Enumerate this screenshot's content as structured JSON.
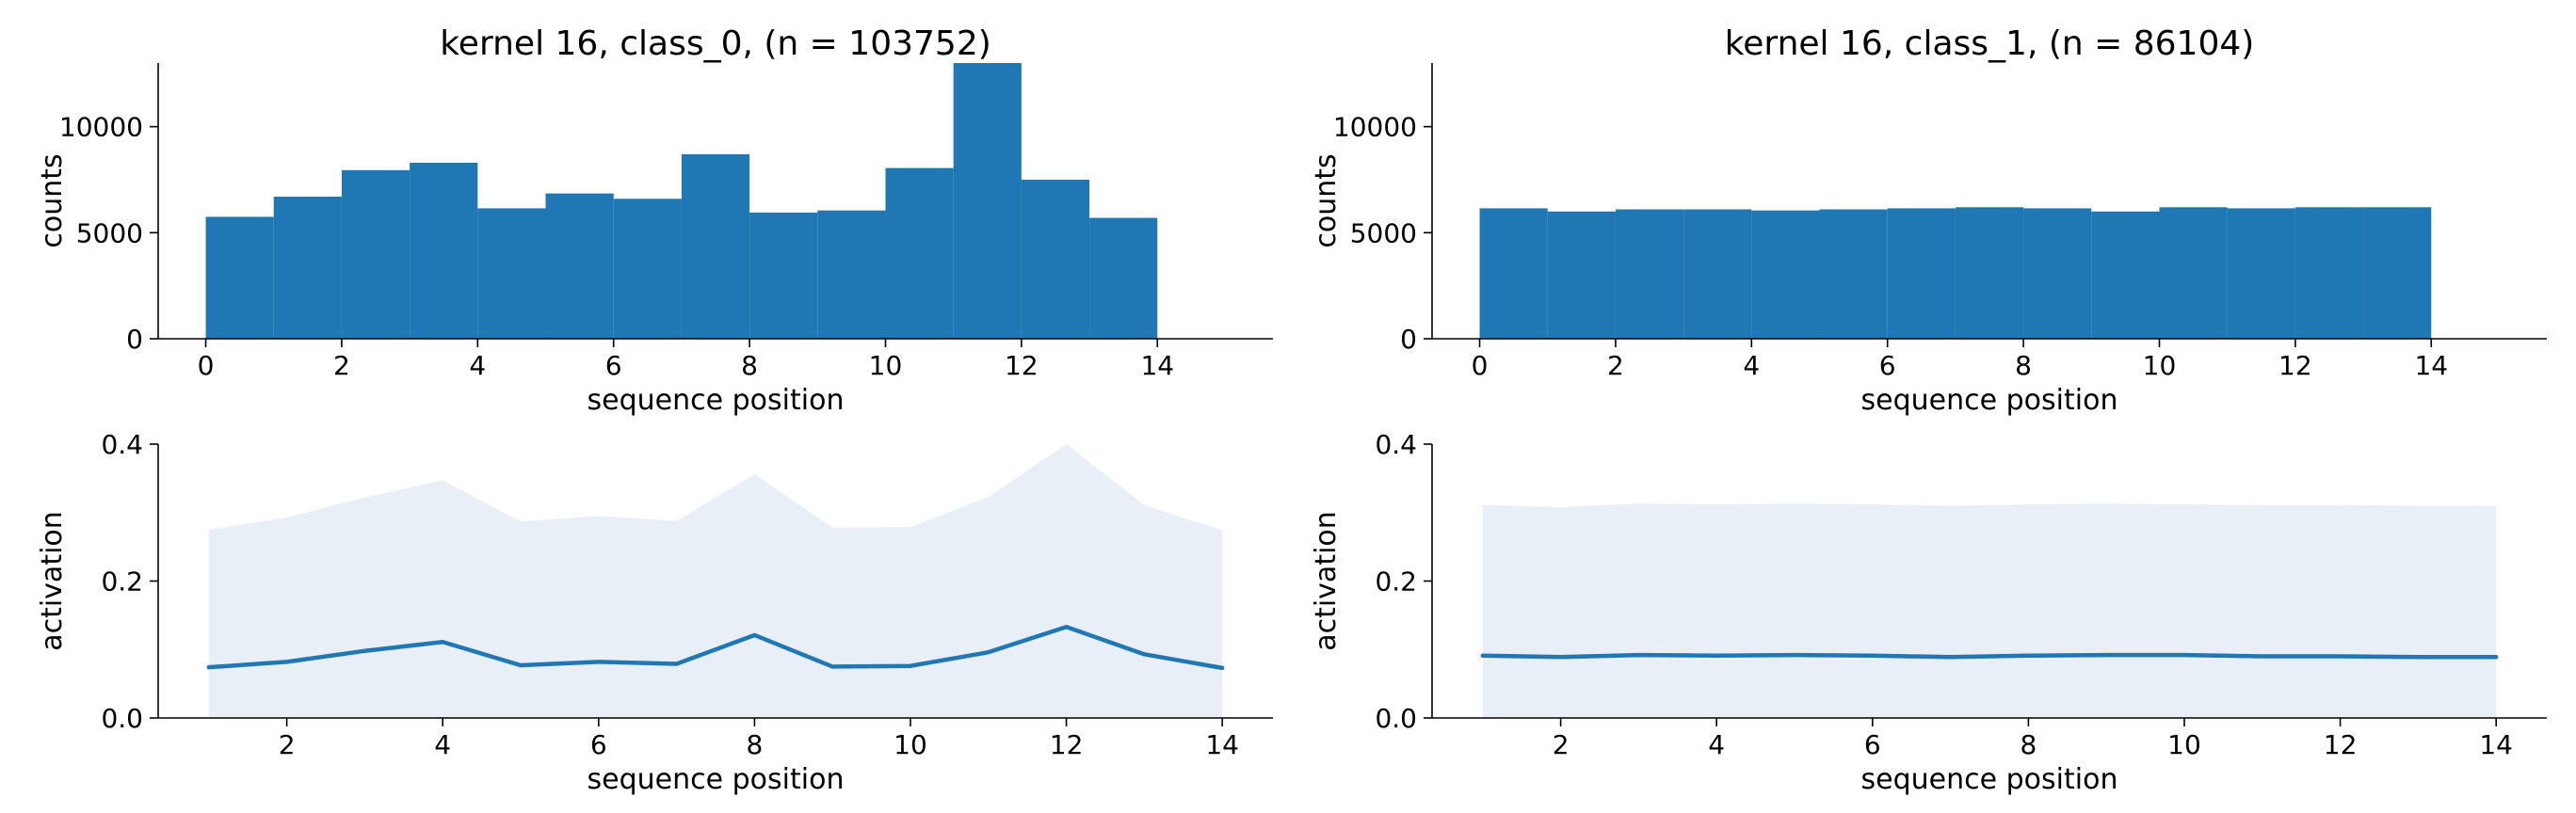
{
  "colors": {
    "bar": "#1f77b4",
    "line": "#1f77b4",
    "band": "#e8eff7",
    "axis": "#000000"
  },
  "chart_data": [
    {
      "type": "bar",
      "title": "kernel 16, class_0, (n = 103752)",
      "xlabel": "sequence position",
      "ylabel": "counts",
      "xlim": [
        -0.7,
        15.7
      ],
      "ylim": [
        0,
        13000
      ],
      "xticks": [
        0,
        2,
        4,
        6,
        8,
        10,
        12,
        14
      ],
      "yticks": [
        0,
        5000,
        10000
      ],
      "bin_edges": [
        0,
        1,
        2,
        3,
        4,
        5,
        6,
        7,
        8,
        9,
        10,
        11,
        12,
        13,
        14
      ],
      "values": [
        5750,
        6700,
        7950,
        8300,
        6150,
        6850,
        6600,
        8700,
        5950,
        6050,
        8050,
        13000,
        7500,
        5700
      ]
    },
    {
      "type": "bar",
      "title": "kernel 16, class_1, (n = 86104)",
      "xlabel": "sequence position",
      "ylabel": "counts",
      "xlim": [
        -0.7,
        15.7
      ],
      "ylim": [
        0,
        13000
      ],
      "xticks": [
        0,
        2,
        4,
        6,
        8,
        10,
        12,
        14
      ],
      "yticks": [
        0,
        5000,
        10000
      ],
      "bin_edges": [
        0,
        1,
        2,
        3,
        4,
        5,
        6,
        7,
        8,
        9,
        10,
        11,
        12,
        13,
        14
      ],
      "values": [
        6150,
        6000,
        6100,
        6100,
        6050,
        6100,
        6150,
        6200,
        6150,
        6000,
        6200,
        6150,
        6200,
        6200
      ]
    },
    {
      "type": "area",
      "title": "",
      "xlabel": "sequence position",
      "ylabel": "activation",
      "xlim": [
        0.35,
        14.65
      ],
      "ylim": [
        0,
        0.4
      ],
      "xticks": [
        2,
        4,
        6,
        8,
        10,
        12,
        14
      ],
      "yticks": [
        0.0,
        0.2,
        0.4
      ],
      "ytick_labels": [
        "0.0",
        "0.2",
        "0.4"
      ],
      "x": [
        1,
        2,
        3,
        4,
        5,
        6,
        7,
        8,
        9,
        10,
        11,
        12,
        13,
        14
      ],
      "mean": [
        0.074,
        0.082,
        0.098,
        0.111,
        0.077,
        0.082,
        0.079,
        0.121,
        0.075,
        0.076,
        0.096,
        0.133,
        0.093,
        0.073
      ],
      "upper": [
        0.275,
        0.293,
        0.322,
        0.347,
        0.287,
        0.295,
        0.288,
        0.356,
        0.278,
        0.279,
        0.323,
        0.4,
        0.311,
        0.274
      ]
    },
    {
      "type": "area",
      "title": "",
      "xlabel": "sequence position",
      "ylabel": "activation",
      "xlim": [
        0.35,
        14.65
      ],
      "ylim": [
        0,
        0.4
      ],
      "xticks": [
        2,
        4,
        6,
        8,
        10,
        12,
        14
      ],
      "yticks": [
        0.0,
        0.2,
        0.4
      ],
      "ytick_labels": [
        "0.0",
        "0.2",
        "0.4"
      ],
      "x": [
        1,
        2,
        3,
        4,
        5,
        6,
        7,
        8,
        9,
        10,
        11,
        12,
        13,
        14
      ],
      "mean": [
        0.091,
        0.089,
        0.092,
        0.091,
        0.092,
        0.091,
        0.089,
        0.091,
        0.092,
        0.092,
        0.09,
        0.09,
        0.089,
        0.089
      ],
      "upper": [
        0.311,
        0.308,
        0.313,
        0.312,
        0.313,
        0.312,
        0.31,
        0.312,
        0.313,
        0.312,
        0.311,
        0.311,
        0.31,
        0.31
      ]
    }
  ]
}
